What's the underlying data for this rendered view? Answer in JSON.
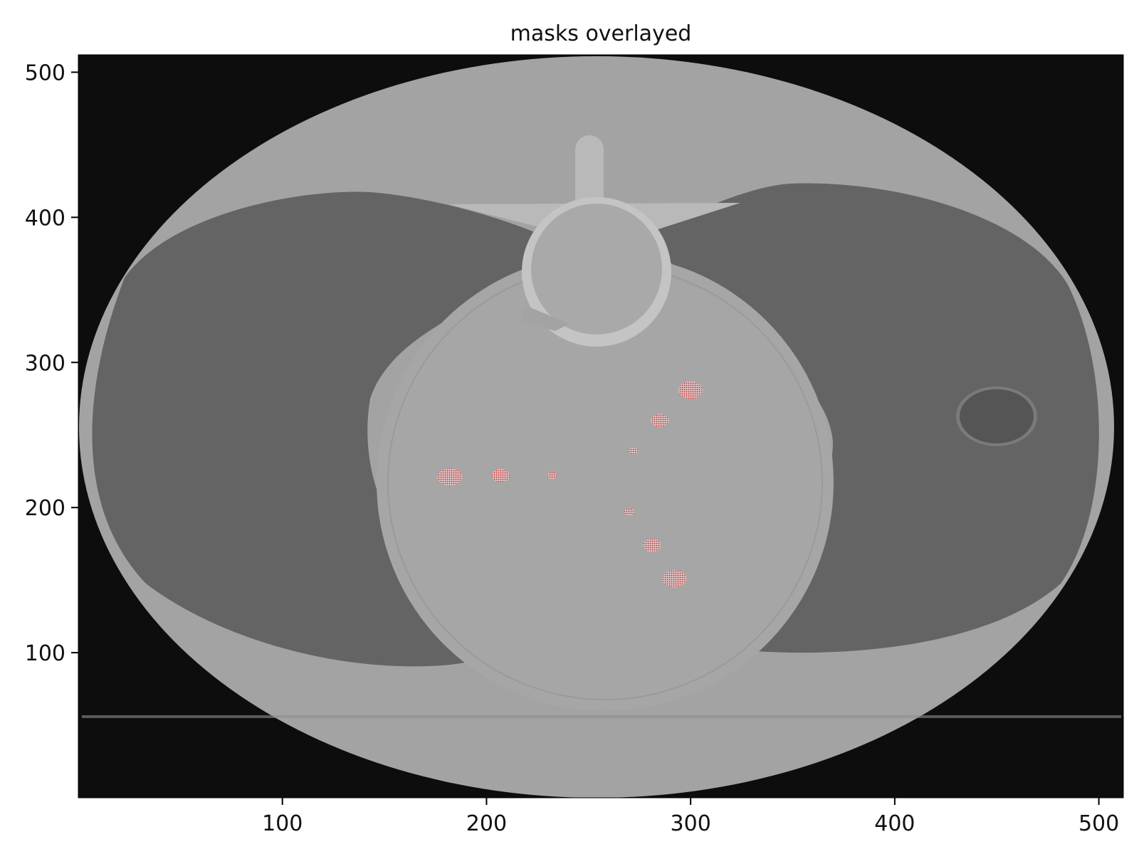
{
  "title": "masks overlayed",
  "image": {
    "subject": "axial CT slice of chest phantom",
    "background_color": "#0d0d0d",
    "body_color": "#a3a3a3",
    "lung_color": "#646464",
    "mask_color": "#d62020"
  },
  "axes": {
    "xlim": [
      0,
      512
    ],
    "ylim": [
      0,
      512
    ],
    "x_ticks": [
      "100",
      "200",
      "300",
      "400",
      "500"
    ],
    "y_ticks": [
      "100",
      "200",
      "300",
      "400",
      "500"
    ]
  },
  "masks": [
    {
      "x": 300,
      "y": 281,
      "r": 6
    },
    {
      "x": 285,
      "y": 260,
      "r": 4.5
    },
    {
      "x": 272,
      "y": 239,
      "r": 2.5
    },
    {
      "x": 182,
      "y": 221,
      "r": 6
    },
    {
      "x": 207,
      "y": 222,
      "r": 4.5
    },
    {
      "x": 232,
      "y": 222,
      "r": 2.5
    },
    {
      "x": 270,
      "y": 197,
      "r": 2.5
    },
    {
      "x": 281,
      "y": 174,
      "r": 4.5
    },
    {
      "x": 292,
      "y": 151,
      "r": 6
    }
  ]
}
